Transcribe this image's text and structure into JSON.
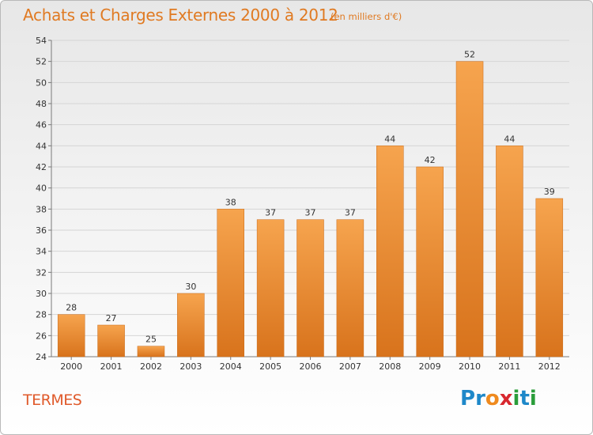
{
  "header": {
    "title": "Achats et Charges Externes 2000 à 2012",
    "unit": "(en milliers d'€)"
  },
  "footer": {
    "commune": "TERMES",
    "logo_text": "Proxiti",
    "logo_letters": [
      {
        "ch": "P",
        "color": "#1e88c9"
      },
      {
        "ch": "r",
        "color": "#1e88c9"
      },
      {
        "ch": "o",
        "color": "#ef8a1e"
      },
      {
        "ch": "x",
        "color": "#d8282f"
      },
      {
        "ch": "i",
        "color": "#2a9d3a"
      },
      {
        "ch": "t",
        "color": "#1e88c9"
      },
      {
        "ch": "i",
        "color": "#2a9d3a"
      }
    ]
  },
  "colors": {
    "bar_top": "#f6a44e",
    "bar_bottom": "#d8731c",
    "grid": "#d5d5d5",
    "axis": "#7a7a7a",
    "text": "#333333"
  },
  "chart_data": {
    "type": "bar",
    "categories": [
      "2000",
      "2001",
      "2002",
      "2003",
      "2004",
      "2005",
      "2006",
      "2007",
      "2008",
      "2009",
      "2010",
      "2011",
      "2012"
    ],
    "values": [
      28,
      27,
      25,
      30,
      38,
      37,
      37,
      37,
      44,
      42,
      52,
      44,
      39
    ],
    "ylim": [
      24,
      54
    ],
    "yticks": [
      24,
      26,
      28,
      30,
      32,
      34,
      36,
      38,
      40,
      42,
      44,
      46,
      48,
      50,
      52,
      54
    ],
    "grid": true,
    "legend": "none",
    "data_labels": true,
    "title": "Achats et Charges Externes 2000 à 2012",
    "ylabel": "(en milliers d'€)",
    "xlabel": ""
  }
}
